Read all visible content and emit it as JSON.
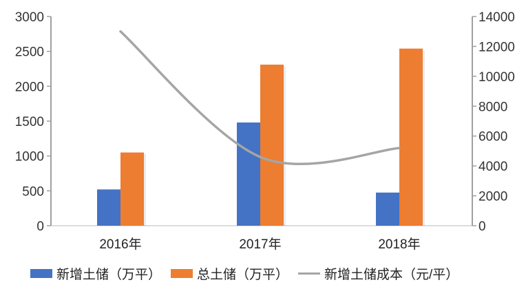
{
  "chart_data": {
    "type": "bar",
    "title": "",
    "categories": [
      "2016年",
      "2017年",
      "2018年"
    ],
    "series": [
      {
        "name": "新增土储（万平）",
        "type": "bar",
        "axis": "left",
        "color": "#4472C4",
        "values": [
          520,
          1480,
          475
        ]
      },
      {
        "name": "总土储（万平）",
        "type": "bar",
        "axis": "left",
        "color": "#ED7D31",
        "values": [
          1050,
          2310,
          2540
        ]
      },
      {
        "name": "新增土储成本（元/平）",
        "type": "line",
        "axis": "right",
        "color": "#A5A5A5",
        "values": [
          13000,
          4600,
          5200
        ]
      }
    ],
    "xlabel": "",
    "ylabel": "",
    "y2label": "",
    "ylim": [
      0,
      3000
    ],
    "y2lim": [
      0,
      14000
    ],
    "yticks": [
      0,
      500,
      1000,
      1500,
      2000,
      2500,
      3000
    ],
    "y2ticks": [
      0,
      2000,
      4000,
      6000,
      8000,
      10000,
      12000,
      14000
    ],
    "grid": false,
    "legend_position": "bottom"
  },
  "axis_labels": {
    "left": [
      "0",
      "500",
      "1000",
      "1500",
      "2000",
      "2500",
      "3000"
    ],
    "right": [
      "0",
      "2000",
      "4000",
      "6000",
      "8000",
      "10000",
      "12000",
      "14000"
    ]
  },
  "legend": [
    {
      "label": "新增土储（万平）",
      "color": "#4472C4",
      "kind": "box"
    },
    {
      "label": "总土储（万平）",
      "color": "#ED7D31",
      "kind": "box"
    },
    {
      "label": "新增土储成本（元/平）",
      "color": "#A5A5A5",
      "kind": "line"
    }
  ]
}
